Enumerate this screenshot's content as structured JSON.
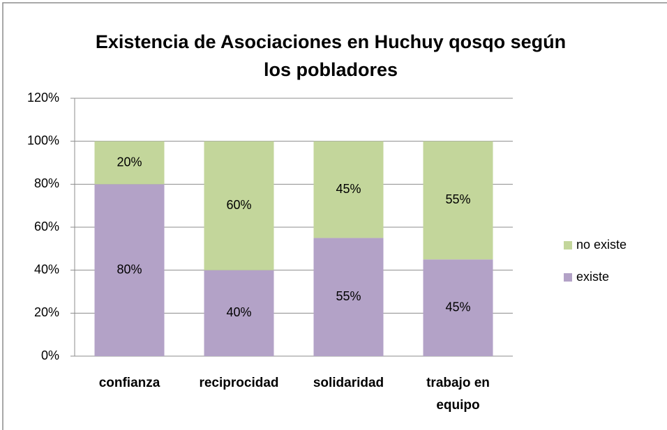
{
  "chart_data": {
    "type": "stacked_bar",
    "title": "Existencia de Asociaciones en Huchuy qosqo según los pobladores",
    "categories": [
      "confianza",
      "reciprocidad",
      "solidaridad",
      "trabajo en equipo"
    ],
    "series": [
      {
        "name": "existe",
        "color": "#b3a2c7",
        "values": [
          80,
          40,
          55,
          45
        ],
        "value_labels": [
          "80%",
          "40%",
          "55%",
          "45%"
        ]
      },
      {
        "name": "no existe",
        "color": "#c3d69b",
        "values": [
          20,
          60,
          45,
          55
        ],
        "value_labels": [
          "20%",
          "60%",
          "45%",
          "55%"
        ]
      }
    ],
    "ylim": [
      0,
      120
    ],
    "yticks": [
      {
        "value": 0,
        "label": "0%"
      },
      {
        "value": 20,
        "label": "20%"
      },
      {
        "value": 40,
        "label": "40%"
      },
      {
        "value": 60,
        "label": "60%"
      },
      {
        "value": 80,
        "label": "80%"
      },
      {
        "value": 100,
        "label": "100%"
      },
      {
        "value": 120,
        "label": "120%"
      }
    ],
    "grid": true,
    "legend": "right"
  }
}
